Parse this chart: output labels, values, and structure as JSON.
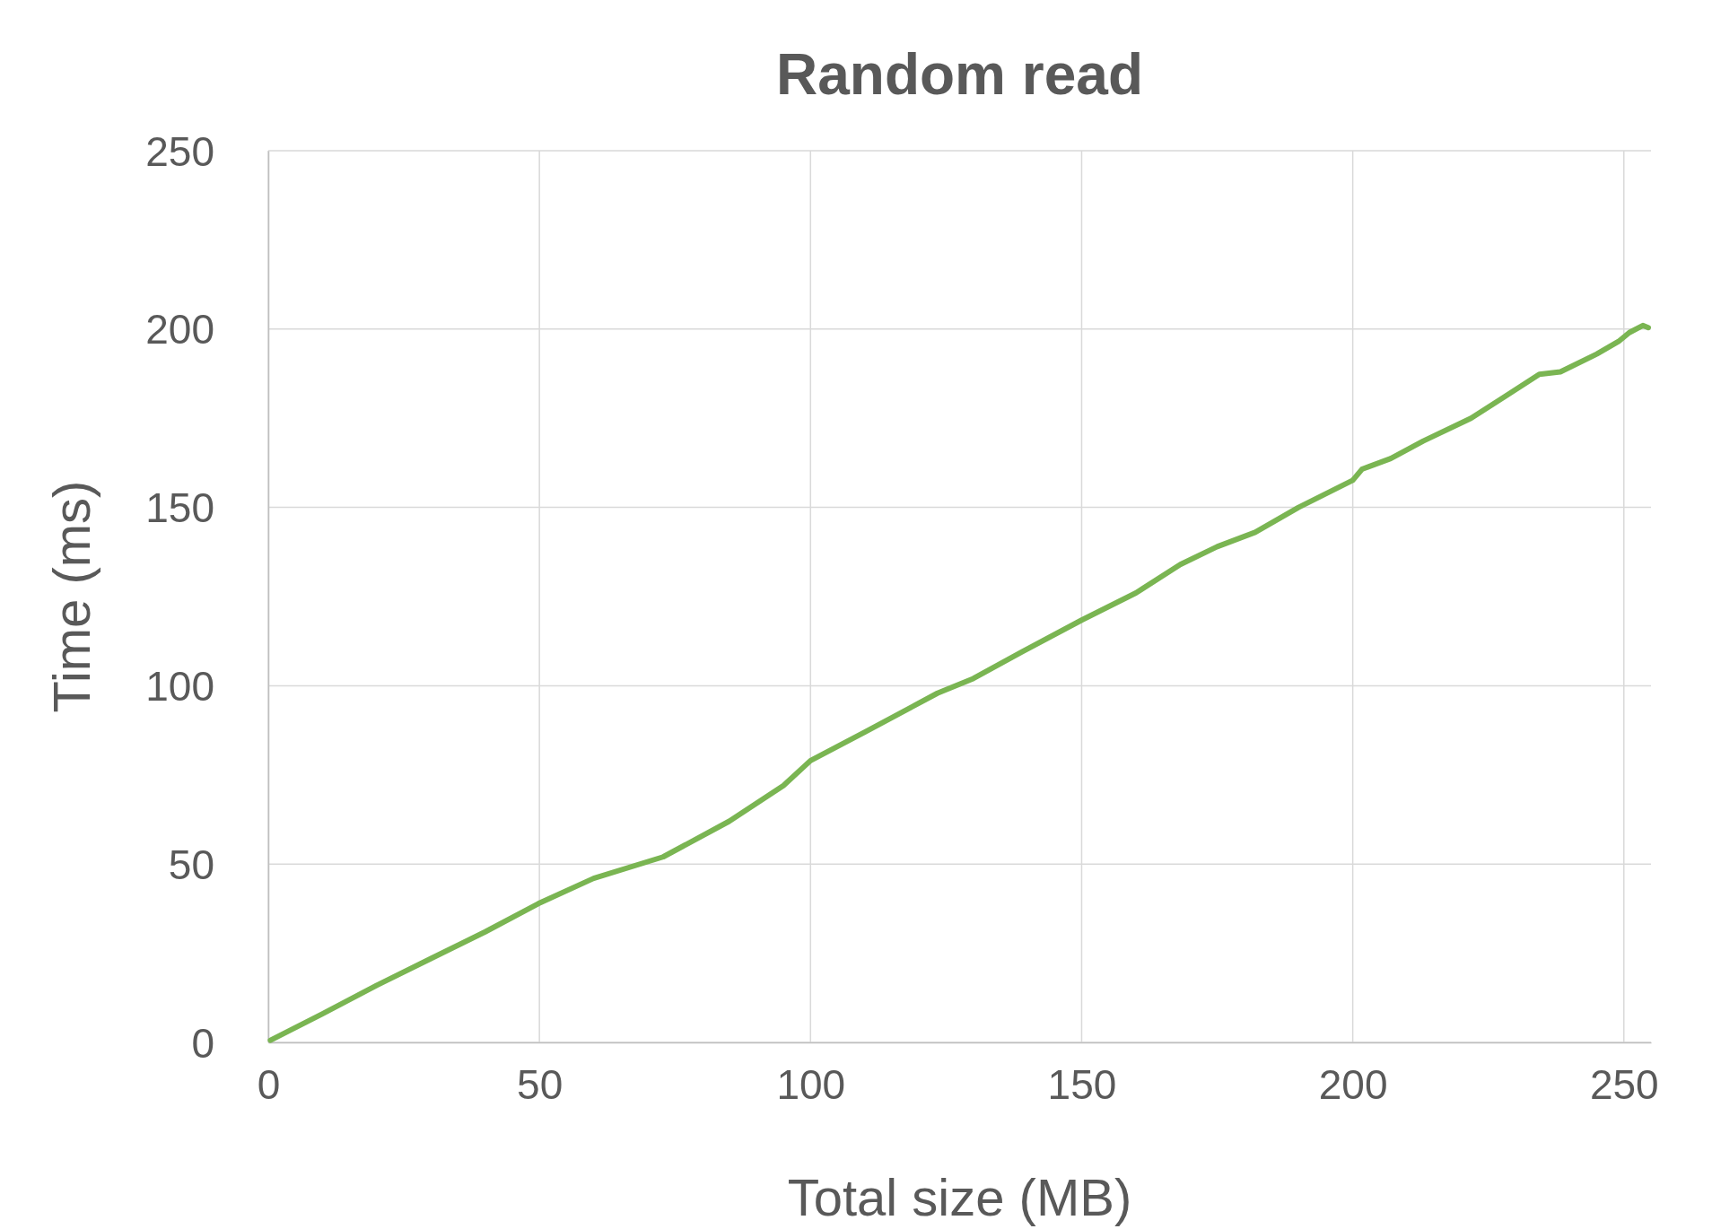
{
  "chart_data": {
    "type": "line",
    "title": "Random read",
    "xlabel": "Total size (MB)",
    "ylabel": "Time (ms)",
    "xlim": [
      0,
      255
    ],
    "ylim": [
      0,
      250
    ],
    "xticks": [
      0,
      50,
      100,
      150,
      200,
      250
    ],
    "yticks": [
      0,
      50,
      100,
      150,
      200,
      250
    ],
    "grid": true,
    "marker": "none",
    "line_style": "solid",
    "series": [
      {
        "color": "#7ab552",
        "x": [
          0.4,
          10,
          20,
          30,
          40,
          49.8,
          60,
          72.8,
          85,
          95,
          100,
          110,
          123.4,
          130,
          139,
          150,
          160,
          168.2,
          175,
          182,
          190,
          200,
          201.7,
          207,
          213,
          221.8,
          228,
          234.4,
          238.3,
          245,
          249,
          251,
          253.5,
          254.5
        ],
        "values": [
          0.6,
          8,
          16,
          23.5,
          31,
          38.9,
          46,
          52,
          62,
          72,
          79,
          87,
          97.9,
          102,
          109.5,
          118.4,
          126,
          134,
          139,
          143,
          150,
          157.6,
          160.7,
          163.7,
          168.6,
          175,
          181,
          187.3,
          188,
          193,
          196.5,
          199,
          201,
          200.4
        ]
      }
    ]
  }
}
